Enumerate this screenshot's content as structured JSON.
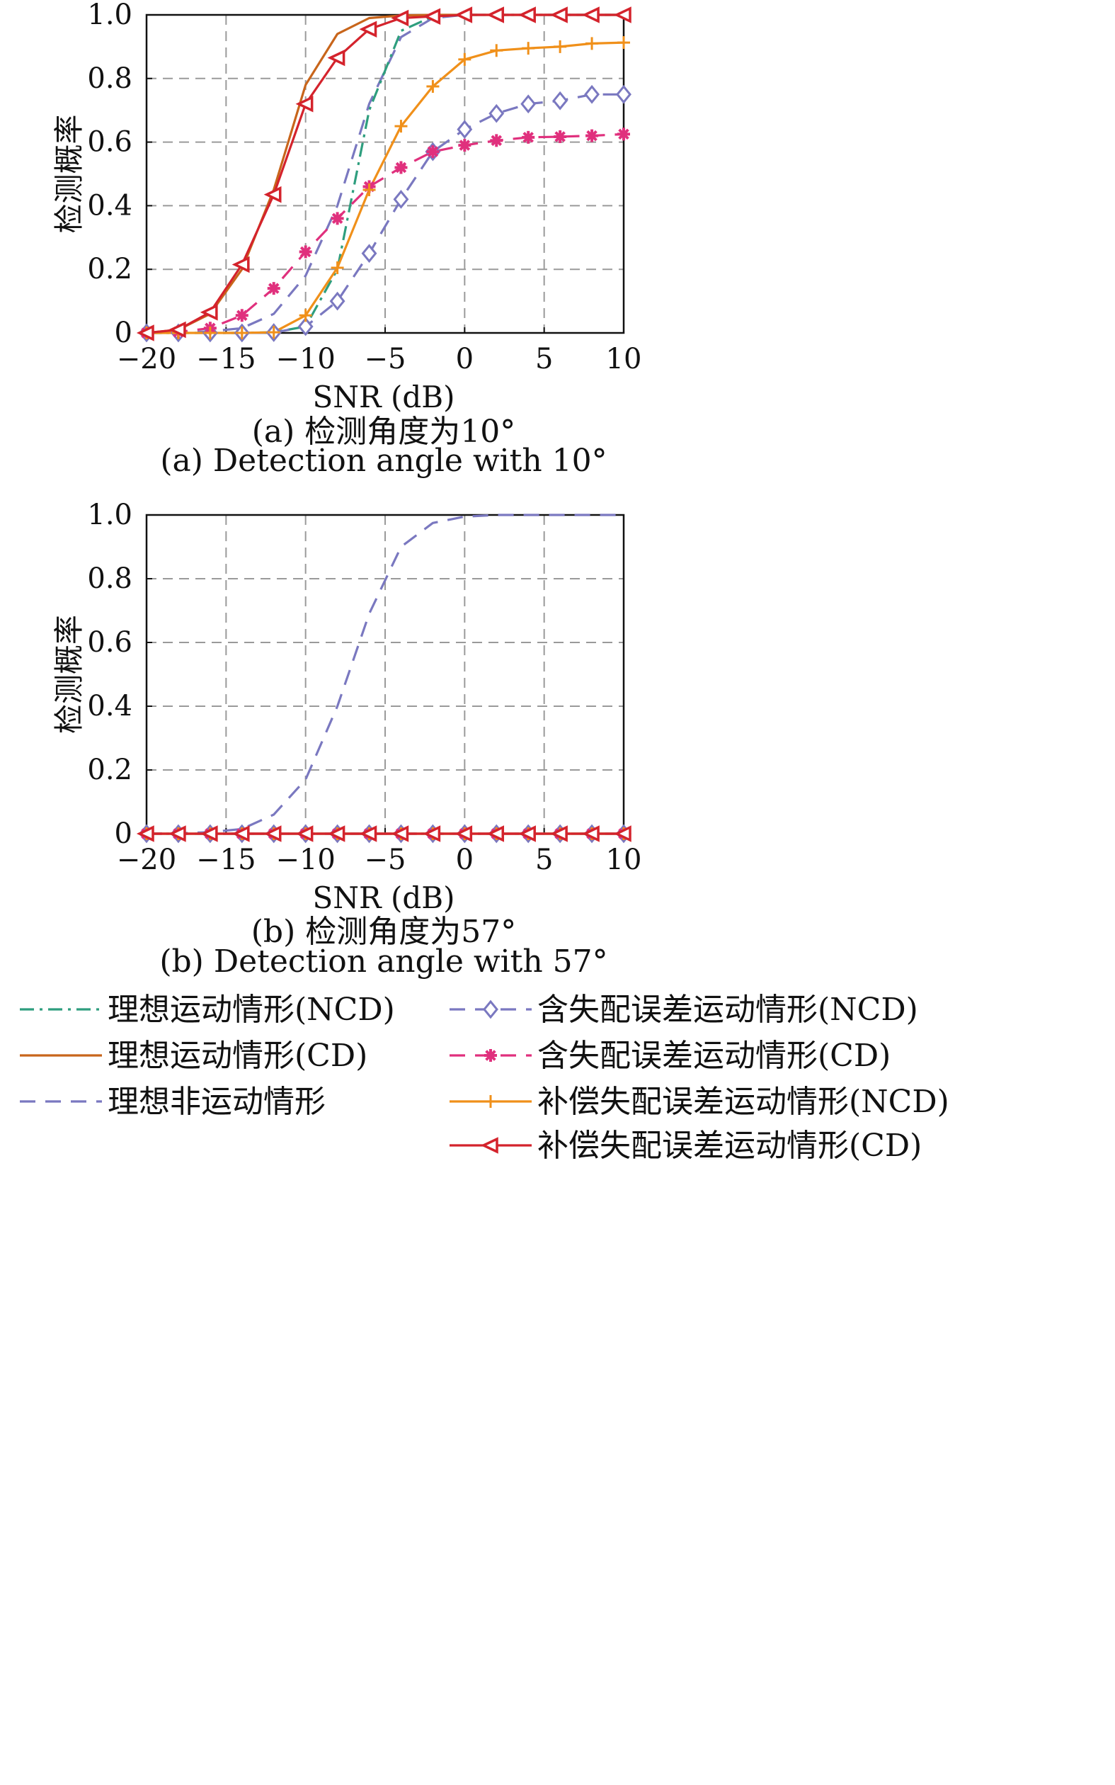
{
  "chart_data": [
    {
      "type": "line",
      "caption_cn": "(a) 检测角度为10°",
      "caption_en": "(a) Detection angle with 10°",
      "xlabel": "SNR (dB)",
      "ylabel": "检测概率",
      "xlim": [
        -20,
        10
      ],
      "ylim": [
        0,
        1
      ],
      "xticks": [
        -20,
        -15,
        -10,
        -5,
        0,
        5,
        10
      ],
      "xtick_labels": [
        "−20",
        "−15",
        "−10",
        "−5",
        "0",
        "5",
        "10"
      ],
      "yticks": [
        0,
        0.2,
        0.4,
        0.6,
        0.8,
        1.0
      ],
      "ytick_labels": [
        "0",
        "0.2",
        "0.4",
        "0.6",
        "0.8",
        "1.0"
      ],
      "grid": true,
      "x": [
        -20,
        -18,
        -16,
        -14,
        -12,
        -10,
        -8,
        -6,
        -4,
        -2,
        0,
        2,
        4,
        6,
        8,
        10
      ],
      "series": [
        {
          "name": "理想运动情形(NCD)",
          "color": "#2e9e7e",
          "dash": "dashdot",
          "marker": "none",
          "values": [
            0,
            0,
            0,
            0,
            0.002,
            0.02,
            0.2,
            0.7,
            0.95,
            0.995,
            1,
            1,
            1,
            1,
            1,
            1
          ]
        },
        {
          "name": "理想运动情形(CD)",
          "color": "#c8651b",
          "dash": "solid",
          "marker": "none",
          "values": [
            0,
            0.01,
            0.06,
            0.2,
            0.45,
            0.78,
            0.94,
            0.99,
            0.998,
            1,
            1,
            1,
            1,
            1,
            1,
            1
          ]
        },
        {
          "name": "理想非运动情形",
          "color": "#7a78c0",
          "dash": "dash",
          "marker": "none",
          "values": [
            0,
            0.001,
            0.005,
            0.015,
            0.06,
            0.18,
            0.4,
            0.72,
            0.93,
            0.99,
            1,
            1,
            1,
            1,
            1,
            1
          ]
        },
        {
          "name": "含失配误差运动情形(NCD)",
          "color": "#7a78c0",
          "dash": "dash",
          "marker": "diamond",
          "values": [
            0,
            0,
            0,
            0,
            0.001,
            0.02,
            0.1,
            0.25,
            0.42,
            0.57,
            0.64,
            0.69,
            0.72,
            0.73,
            0.75,
            0.75
          ]
        },
        {
          "name": "含失配误差运动情形(CD)",
          "color": "#e0307d",
          "dash": "dash",
          "marker": "star",
          "values": [
            0,
            0.003,
            0.015,
            0.055,
            0.14,
            0.255,
            0.36,
            0.46,
            0.52,
            0.57,
            0.59,
            0.605,
            0.615,
            0.617,
            0.62,
            0.625
          ]
        },
        {
          "name": "补偿失配误差运动情形(NCD)",
          "color": "#f0901a",
          "dash": "solid",
          "marker": "plus",
          "values": [
            0,
            0,
            0,
            0,
            0.002,
            0.055,
            0.205,
            0.45,
            0.65,
            0.775,
            0.86,
            0.888,
            0.895,
            0.9,
            0.91,
            0.913
          ]
        },
        {
          "name": "补偿失配误差运动情形(CD)",
          "color": "#d4232c",
          "dash": "solid",
          "marker": "triangle-left",
          "values": [
            0,
            0.01,
            0.065,
            0.215,
            0.435,
            0.72,
            0.865,
            0.955,
            0.99,
            0.995,
            1,
            1,
            1,
            1,
            1,
            1
          ]
        }
      ]
    },
    {
      "type": "line",
      "caption_cn": "(b) 检测角度为57°",
      "caption_en": "(b) Detection angle with 57°",
      "xlabel": "SNR (dB)",
      "ylabel": "检测概率",
      "xlim": [
        -20,
        10
      ],
      "ylim": [
        0,
        1
      ],
      "xticks": [
        -20,
        -15,
        -10,
        -5,
        0,
        5,
        10
      ],
      "xtick_labels": [
        "−20",
        "−15",
        "−10",
        "−5",
        "0",
        "5",
        "10"
      ],
      "yticks": [
        0,
        0.2,
        0.4,
        0.6,
        0.8,
        1.0
      ],
      "ytick_labels": [
        "0",
        "0.2",
        "0.4",
        "0.6",
        "0.8",
        "1.0"
      ],
      "grid": true,
      "x": [
        -20,
        -18,
        -16,
        -14,
        -12,
        -10,
        -8,
        -6,
        -4,
        -2,
        0,
        2,
        4,
        6,
        8,
        10
      ],
      "series": [
        {
          "name": "理想运动情形(NCD)",
          "color": "#2e9e7e",
          "dash": "dashdot",
          "marker": "none",
          "values": [
            0,
            0,
            0,
            0,
            0,
            0,
            0,
            0,
            0,
            0,
            0,
            0,
            0,
            0,
            0,
            0
          ]
        },
        {
          "name": "理想运动情形(CD)",
          "color": "#c8651b",
          "dash": "solid",
          "marker": "none",
          "values": [
            0,
            0,
            0,
            0,
            0,
            0,
            0,
            0,
            0,
            0,
            0,
            0,
            0,
            0,
            0,
            0
          ]
        },
        {
          "name": "理想非运动情形",
          "color": "#7a78c0",
          "dash": "dash",
          "marker": "none",
          "values": [
            0,
            0.001,
            0.005,
            0.015,
            0.06,
            0.17,
            0.4,
            0.69,
            0.9,
            0.975,
            0.995,
            1,
            1,
            1,
            1,
            1
          ]
        },
        {
          "name": "含失配误差运动情形(NCD)",
          "color": "#7a78c0",
          "dash": "dash",
          "marker": "diamond",
          "values": [
            0,
            0,
            0,
            0,
            0,
            0,
            0,
            0,
            0,
            0,
            0,
            0,
            0,
            0,
            0,
            0
          ]
        },
        {
          "name": "含失配误差运动情形(CD)",
          "color": "#e0307d",
          "dash": "dash",
          "marker": "star",
          "values": [
            0,
            0,
            0,
            0,
            0,
            0,
            0,
            0,
            0,
            0,
            0,
            0,
            0,
            0,
            0,
            0
          ]
        },
        {
          "name": "补偿失配误差运动情形(NCD)",
          "color": "#f0901a",
          "dash": "solid",
          "marker": "plus",
          "values": [
            0,
            0,
            0,
            0,
            0,
            0,
            0,
            0,
            0,
            0,
            0,
            0,
            0,
            0,
            0,
            0
          ]
        },
        {
          "name": "补偿失配误差运动情形(CD)",
          "color": "#d4232c",
          "dash": "solid",
          "marker": "triangle-left",
          "values": [
            0,
            0,
            0,
            0,
            0,
            0,
            0,
            0,
            0,
            0,
            0,
            0,
            0,
            0,
            0,
            0
          ]
        }
      ]
    }
  ],
  "legend": {
    "placement": "bottom",
    "items": [
      {
        "label": "理想运动情形(NCD)",
        "series": 0
      },
      {
        "label": "含失配误差运动情形(NCD)",
        "series": 3
      },
      {
        "label": "理想运动情形(CD)",
        "series": 1
      },
      {
        "label": "含失配误差运动情形(CD)",
        "series": 4
      },
      {
        "label": "理想非运动情形",
        "series": 2
      },
      {
        "label": "补偿失配误差运动情形(NCD)",
        "series": 5
      },
      {
        "label": "补偿失配误差运动情形(CD)",
        "series": 6
      }
    ]
  }
}
